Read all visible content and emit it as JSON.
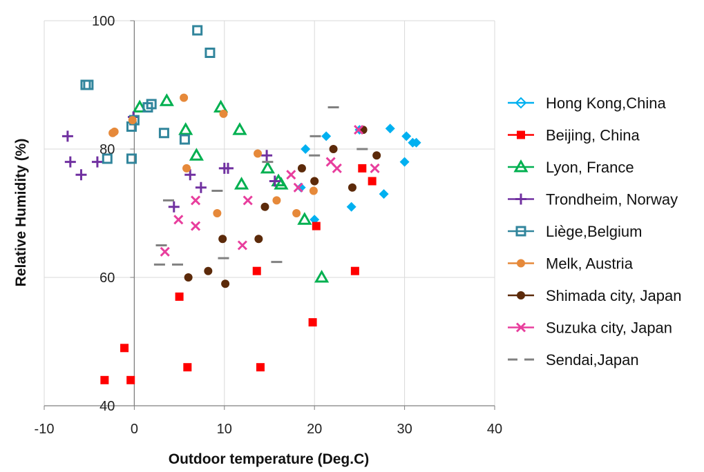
{
  "chart_data": {
    "type": "scatter",
    "title": "",
    "xlabel": "Outdoor temperature (Deg.C)",
    "ylabel": "Relative Humidity (%)",
    "xlim": [
      -10,
      40
    ],
    "ylim": [
      40,
      100
    ],
    "x_ticks": [
      "-10",
      "0",
      "10",
      "20",
      "30",
      "40"
    ],
    "y_ticks": [
      "40",
      "60",
      "80",
      "100"
    ],
    "grid": true,
    "legend": "right",
    "series": [
      {
        "name": "Hong Kong,China",
        "marker": "diamond",
        "color": "#00b0f0",
        "points": [
          [
            18.5,
            74
          ],
          [
            19,
            80
          ],
          [
            20,
            69
          ],
          [
            21.3,
            82
          ],
          [
            24.1,
            71
          ],
          [
            25,
            83
          ],
          [
            27.7,
            73
          ],
          [
            28.4,
            83.2
          ],
          [
            30,
            78
          ],
          [
            30.2,
            82
          ],
          [
            30.9,
            81
          ],
          [
            31.3,
            81
          ]
        ]
      },
      {
        "name": "Beijing, China",
        "marker": "square",
        "color": "#ff0000",
        "points": [
          [
            -3.3,
            44
          ],
          [
            -1.1,
            49
          ],
          [
            -0.4,
            44
          ],
          [
            5,
            57
          ],
          [
            5.9,
            46
          ],
          [
            13.6,
            61
          ],
          [
            14,
            46
          ],
          [
            19.8,
            53
          ],
          [
            20.2,
            68
          ],
          [
            24.5,
            61
          ],
          [
            25.3,
            77
          ],
          [
            26.4,
            75
          ]
        ]
      },
      {
        "name": "Lyon, France",
        "marker": "triangle-open",
        "color": "#00b050",
        "points": [
          [
            0.6,
            86.5
          ],
          [
            3.6,
            87.5
          ],
          [
            5.7,
            83
          ],
          [
            6.9,
            79
          ],
          [
            9.6,
            86.5
          ],
          [
            11.7,
            83
          ],
          [
            11.9,
            74.5
          ],
          [
            14.8,
            77
          ],
          [
            16,
            75
          ],
          [
            16.3,
            74.5
          ],
          [
            18.9,
            69
          ],
          [
            20.8,
            60
          ]
        ]
      },
      {
        "name": "Trondheim, Norway",
        "marker": "plus",
        "color": "#7030a0",
        "points": [
          [
            -7.4,
            82
          ],
          [
            -7.1,
            78
          ],
          [
            -5.9,
            76
          ],
          [
            -4.1,
            78
          ],
          [
            -0.1,
            85
          ],
          [
            4.4,
            71
          ],
          [
            6.2,
            76
          ],
          [
            7.4,
            74
          ],
          [
            10,
            77
          ],
          [
            10.4,
            77
          ],
          [
            14.7,
            79
          ],
          [
            15.6,
            75
          ]
        ]
      },
      {
        "name": "Liège,Belgium",
        "marker": "square-open",
        "color": "#31859c",
        "points": [
          [
            -5.4,
            90
          ],
          [
            -5.1,
            90
          ],
          [
            -3,
            78.5
          ],
          [
            -0.3,
            83.5
          ],
          [
            -0.3,
            78.5
          ],
          [
            0,
            84.5
          ],
          [
            1.5,
            86.5
          ],
          [
            1.9,
            87
          ],
          [
            3.3,
            82.5
          ],
          [
            5.6,
            81.5
          ],
          [
            7,
            98.5
          ],
          [
            8.4,
            95
          ]
        ]
      },
      {
        "name": "Melk, Austria",
        "marker": "circle",
        "color": "#e6893a",
        "points": [
          [
            -2.4,
            82.5
          ],
          [
            -2.2,
            82.7
          ],
          [
            -0.2,
            84.5
          ],
          [
            5.5,
            88
          ],
          [
            5.8,
            77
          ],
          [
            9.2,
            70
          ],
          [
            9.9,
            85.5
          ],
          [
            13.7,
            79.3
          ],
          [
            15.8,
            72
          ],
          [
            18,
            70
          ],
          [
            19.9,
            73.5
          ],
          [
            20,
            75
          ]
        ]
      },
      {
        "name": "Shimada city, Japan",
        "marker": "circle",
        "color": "#5c2a0a",
        "points": [
          [
            6,
            60
          ],
          [
            8.2,
            61
          ],
          [
            9.8,
            66
          ],
          [
            10.1,
            59
          ],
          [
            13.8,
            66
          ],
          [
            14.5,
            71
          ],
          [
            18.6,
            77
          ],
          [
            20,
            75
          ],
          [
            22.1,
            80
          ],
          [
            24.2,
            74
          ],
          [
            25.4,
            83
          ],
          [
            26.9,
            79
          ]
        ]
      },
      {
        "name": "Suzuka city, Japan",
        "marker": "x",
        "color": "#e83e9d",
        "points": [
          [
            3.4,
            64
          ],
          [
            4.9,
            69
          ],
          [
            6.8,
            72
          ],
          [
            6.8,
            68
          ],
          [
            12,
            65
          ],
          [
            12.6,
            72
          ],
          [
            17.4,
            76
          ],
          [
            18.2,
            74
          ],
          [
            21.8,
            78
          ],
          [
            22.5,
            77
          ],
          [
            24.9,
            83
          ],
          [
            26.7,
            77
          ]
        ]
      },
      {
        "name": "Sendai,Japan",
        "marker": "dash",
        "color": "#808080",
        "points": [
          [
            3,
            65
          ],
          [
            2.8,
            62
          ],
          [
            3.8,
            72
          ],
          [
            4.8,
            62
          ],
          [
            9.2,
            73.5
          ],
          [
            9.9,
            63
          ],
          [
            14.8,
            78
          ],
          [
            15.8,
            62.4
          ],
          [
            20,
            79
          ],
          [
            20.1,
            82
          ],
          [
            22.1,
            86.5
          ],
          [
            25.3,
            80
          ]
        ]
      }
    ]
  }
}
